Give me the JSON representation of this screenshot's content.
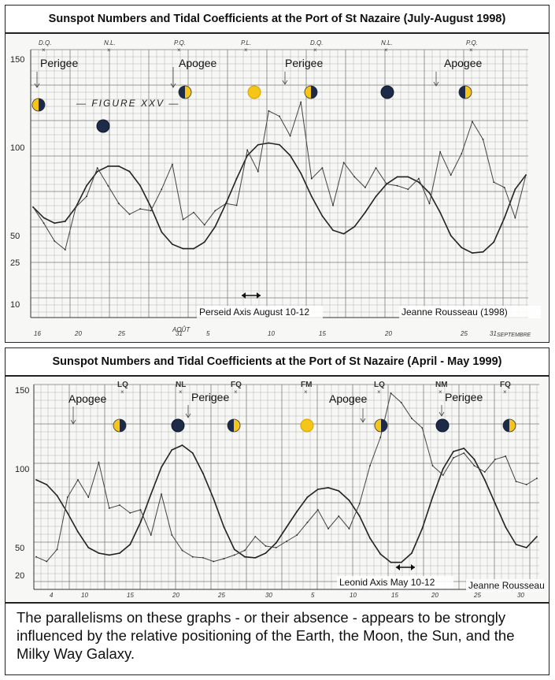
{
  "chart_data": [
    {
      "type": "line",
      "title": "Sunspot Numbers and Tidal Coefficients at the Port of St Nazaire (July-August 1998)",
      "y_ticks": [
        "150",
        "100",
        "50",
        "25",
        "10"
      ],
      "x_ticks": [
        "16",
        "20",
        "25",
        "31",
        "5",
        "10",
        "15",
        "20",
        "25",
        "31"
      ],
      "x_tick_extra": {
        "august": "AOÛT",
        "september": "SEPTEMBRE"
      },
      "phase_markers": [
        "D.Q.",
        "N.L.",
        "P.Q.",
        "P.L.",
        "D.Q.",
        "N.L.",
        "P.Q."
      ],
      "event_labels": [
        "Perigee",
        "Apogee",
        "Perigee",
        "Apogee"
      ],
      "moon_phases": [
        "last-quarter",
        "new",
        "first-quarter",
        "full",
        "last-quarter",
        "new",
        "first-quarter"
      ],
      "figure_label": "FIGURE XXV",
      "annotation": "Perseid Axis August 10-12",
      "credit": "Jeanne Rousseau (1998)",
      "grid": true,
      "series": [
        {
          "style": "smooth",
          "values": [
            66,
            60,
            57,
            58,
            66,
            78,
            86,
            89,
            89,
            86,
            78,
            66,
            52,
            42,
            38,
            38,
            44,
            55,
            68,
            82,
            95,
            101,
            102,
            101,
            95,
            85,
            72,
            61,
            53,
            51,
            55,
            63,
            72,
            79,
            83,
            83,
            80,
            74,
            63,
            50,
            39,
            34,
            35,
            44,
            60,
            76,
            84
          ]
        },
        {
          "style": "jagged",
          "values": [
            66,
            57,
            45,
            37,
            66,
            72,
            88,
            78,
            68,
            62,
            65,
            64,
            76,
            90,
            59,
            63,
            56,
            64,
            68,
            67,
            98,
            86,
            120,
            117,
            106,
            125,
            82,
            88,
            67,
            91,
            83,
            77,
            88,
            79,
            78,
            76,
            82,
            68,
            97,
            84,
            96,
            114,
            104,
            80,
            77,
            60,
            84
          ]
        }
      ]
    },
    {
      "type": "line",
      "title": "Sunspot Numbers and Tidal Coefficients at the Port of St Nazaire (April - May 1999)",
      "y_ticks": [
        "150",
        "100",
        "50",
        "20"
      ],
      "x_ticks": [
        "4",
        "10",
        "15",
        "20",
        "25",
        "30",
        "5",
        "10",
        "15",
        "20",
        "25",
        "30"
      ],
      "phase_markers": [
        "LQ",
        "NL",
        "FQ",
        "FM",
        "LQ",
        "NM",
        "FQ"
      ],
      "event_labels": [
        "Apogee",
        "Perigee",
        "Apogee",
        "Perigee"
      ],
      "moon_phases": [
        "last-quarter",
        "new",
        "first-quarter",
        "full",
        "last-quarter",
        "new",
        "first-quarter"
      ],
      "annotation": "Leonid Axis May 10-12",
      "credit": "Jeanne Rousseau",
      "grid": true,
      "series": [
        {
          "style": "smooth",
          "values": [
            93,
            90,
            83,
            72,
            60,
            50,
            44,
            42,
            44,
            52,
            66,
            84,
            101,
            112,
            115,
            110,
            97,
            81,
            63,
            48,
            40,
            39,
            44,
            53,
            63,
            73,
            82,
            87,
            88,
            86,
            80,
            70,
            56,
            43,
            34,
            34,
            44,
            62,
            82,
            100,
            111,
            113,
            106,
            93,
            78,
            63,
            52,
            50,
            57
          ]
        },
        {
          "style": "jagged",
          "values": [
            40,
            35,
            48,
            82,
            93,
            82,
            104,
            75,
            77,
            72,
            74,
            58,
            84,
            58,
            47,
            40,
            39,
            35,
            38,
            42,
            47,
            57,
            51,
            50,
            54,
            58,
            66,
            74,
            62,
            70,
            62,
            78,
            102,
            120,
            148,
            142,
            132,
            126,
            102,
            96,
            107,
            110,
            102,
            98,
            106,
            108,
            92,
            90,
            94
          ]
        }
      ]
    }
  ],
  "caption": "The parallelisms on these graphs - or their absence - appears to be strongly influenced by the relative positioning of the Earth, the Moon, the Sun, and the Milky Way Galaxy."
}
